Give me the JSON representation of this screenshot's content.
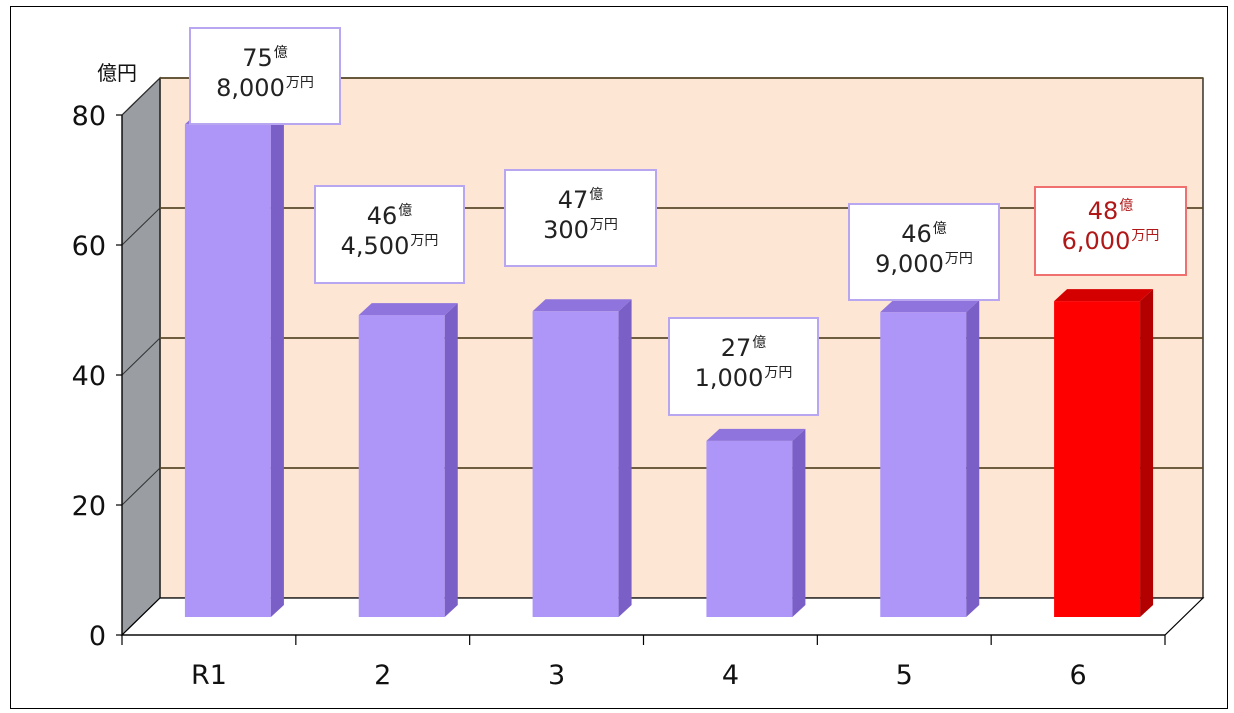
{
  "chart_data": {
    "type": "bar",
    "y_unit": "億円",
    "categories": [
      "R1",
      "2",
      "3",
      "4",
      "5",
      "6"
    ],
    "values": [
      75.8,
      46.45,
      47.03,
      27.1,
      46.9,
      48.6
    ],
    "ylim": [
      0,
      80
    ],
    "yticks": [
      0,
      20,
      40,
      60,
      80
    ],
    "grid": true,
    "highlight_index": 5,
    "colors": {
      "bar": "#ae96f8",
      "bar_side": "#7a5fc7",
      "bar_top": "#8e74dc",
      "highlight": "#ff0000",
      "highlight_side": "#b30000",
      "highlight_top": "#d40000",
      "back_wall": "#fde6d4",
      "side_wall": "#9a9ea3",
      "grid": "#5a4a2a"
    },
    "data_labels": [
      {
        "oku": "75",
        "oku_unit": "億",
        "man": "8,000",
        "man_unit": "万円"
      },
      {
        "oku": "46",
        "oku_unit": "億",
        "man": "4,500",
        "man_unit": "万円"
      },
      {
        "oku": "47",
        "oku_unit": "億",
        "man": "300",
        "man_unit": "万円"
      },
      {
        "oku": "27",
        "oku_unit": "億",
        "man": "1,000",
        "man_unit": "万円"
      },
      {
        "oku": "46",
        "oku_unit": "億",
        "man": "9,000",
        "man_unit": "万円"
      },
      {
        "oku": "48",
        "oku_unit": "億",
        "man": "6,000",
        "man_unit": "万円"
      }
    ]
  }
}
